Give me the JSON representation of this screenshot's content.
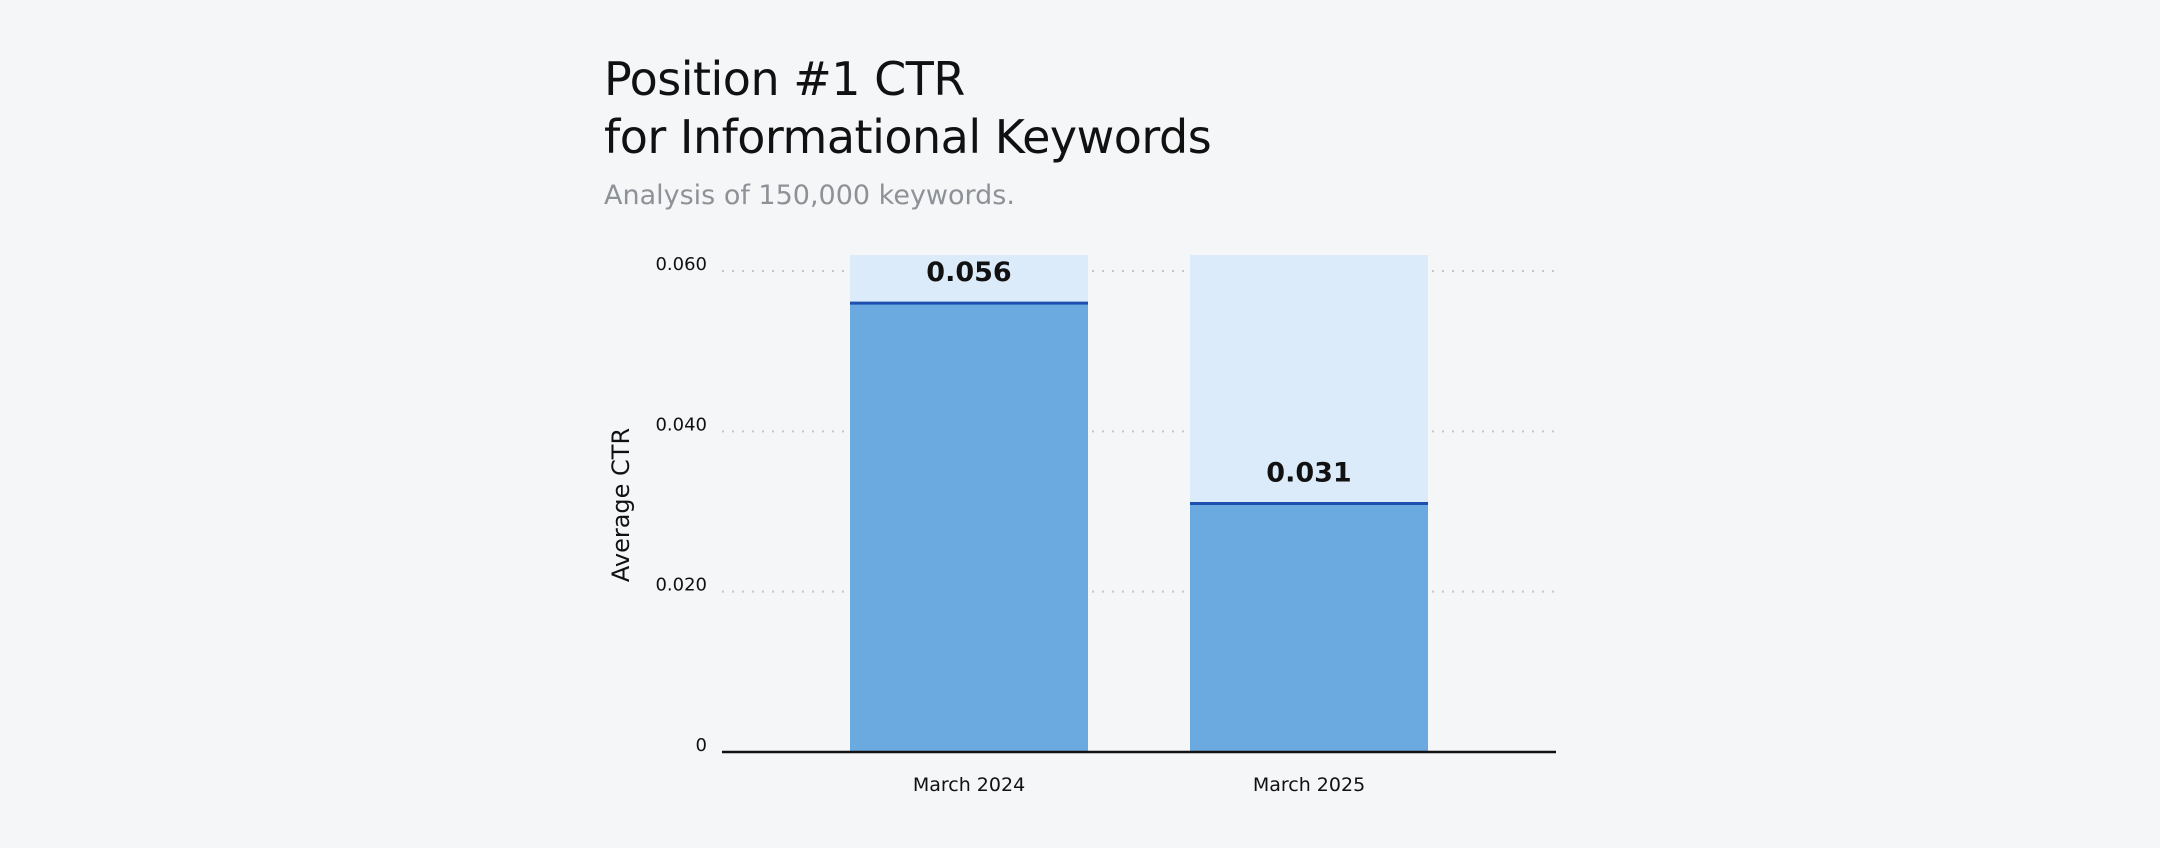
{
  "title_line1": "Position #1 CTR",
  "title_line2": "for Informational Keywords",
  "subtitle": "Analysis of 150,000 keywords.",
  "colors": {
    "background": "#f4f6f8",
    "bar_fill": "#6aaae0",
    "bar_track": "#dcebfa",
    "value_line": "#1f4fae",
    "grid": "#c4c8cc",
    "axis": "#111111"
  },
  "chart_data": {
    "type": "bar",
    "categories": [
      "March 2024",
      "March 2025"
    ],
    "values": [
      0.056,
      0.031
    ],
    "value_labels": [
      "0.056",
      "0.031"
    ],
    "ylabel": "Average CTR",
    "xlabel": "",
    "ylim": [
      0,
      0.062
    ],
    "yticks": [
      0,
      0.02,
      0.04,
      0.06
    ],
    "ytick_labels": [
      "0",
      "0.020",
      "0.040",
      "0.060"
    ],
    "grid": true
  }
}
